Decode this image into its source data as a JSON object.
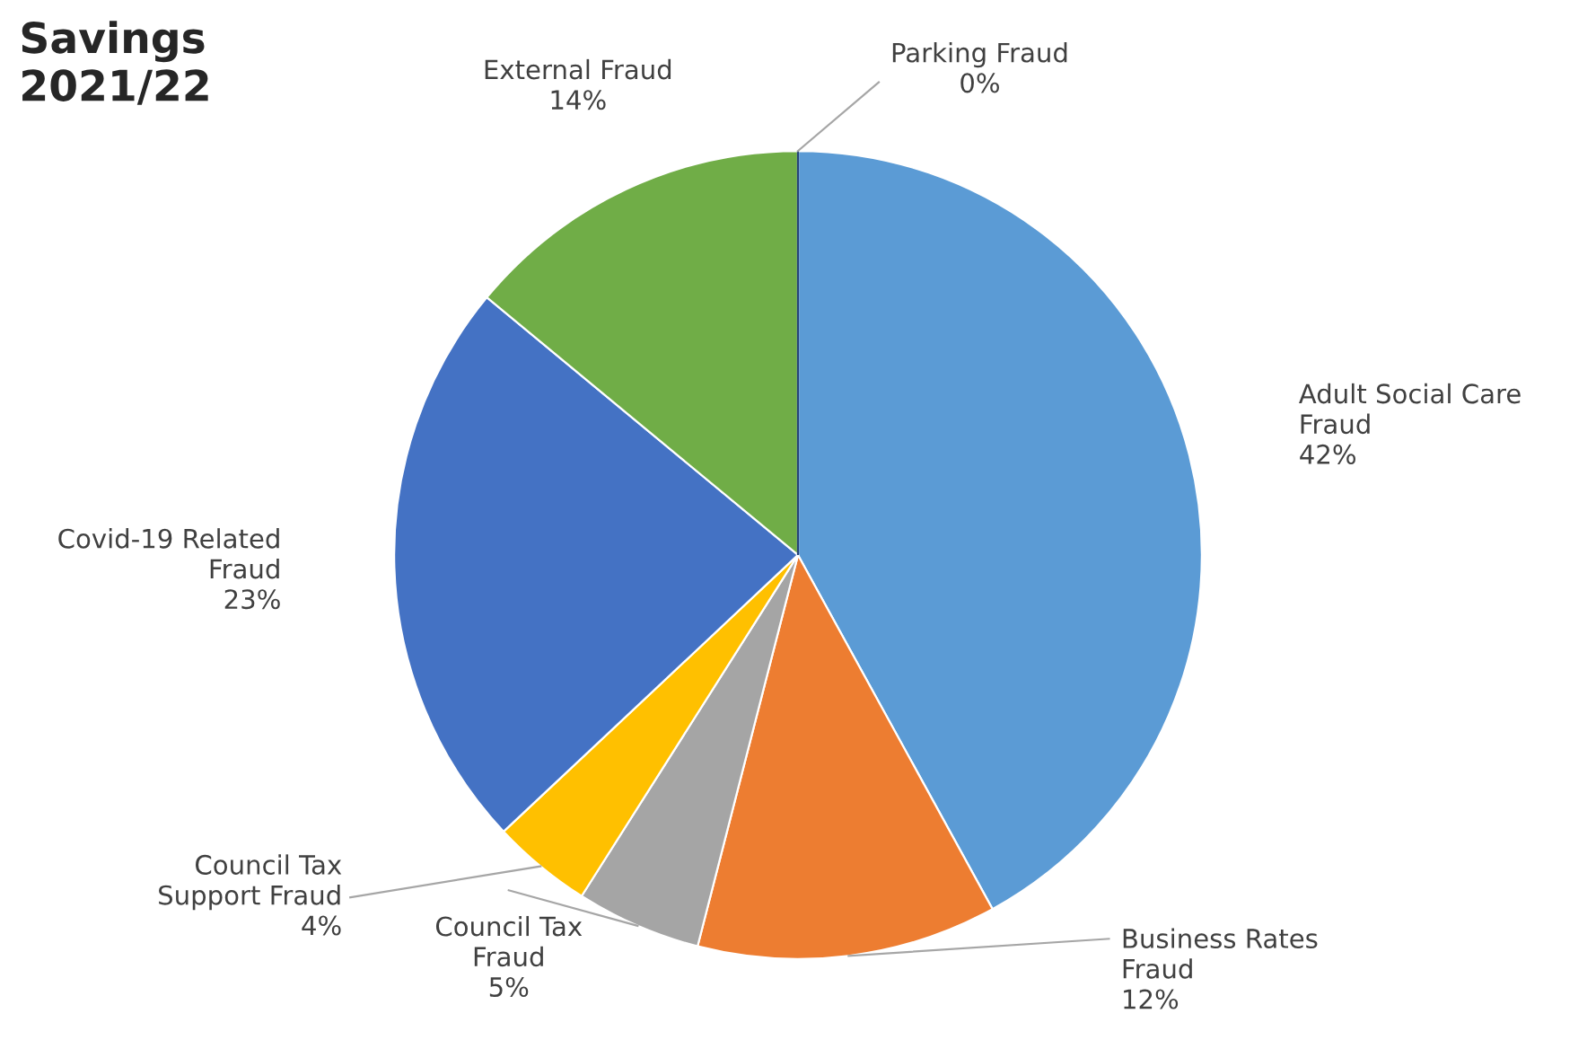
{
  "chart_data": {
    "type": "pie",
    "title": "Savings\n2021/22",
    "categories": [
      "Adult Social Care\nFraud",
      "Business Rates\nFraud",
      "Council Tax\nFraud",
      "Council Tax\nSupport Fraud",
      "Covid-19 Related\nFraud",
      "External Fraud",
      "Parking Fraud"
    ],
    "values": [
      42,
      12,
      5,
      4,
      23,
      14,
      0
    ],
    "value_labels": [
      "42%",
      "12%",
      "5%",
      "4%",
      "23%",
      "14%",
      "0%"
    ],
    "colors": [
      "#5b9bd5",
      "#ed7d31",
      "#a5a5a5",
      "#ffc000",
      "#4472c4",
      "#70ad47",
      "#264478"
    ],
    "legend": false
  }
}
